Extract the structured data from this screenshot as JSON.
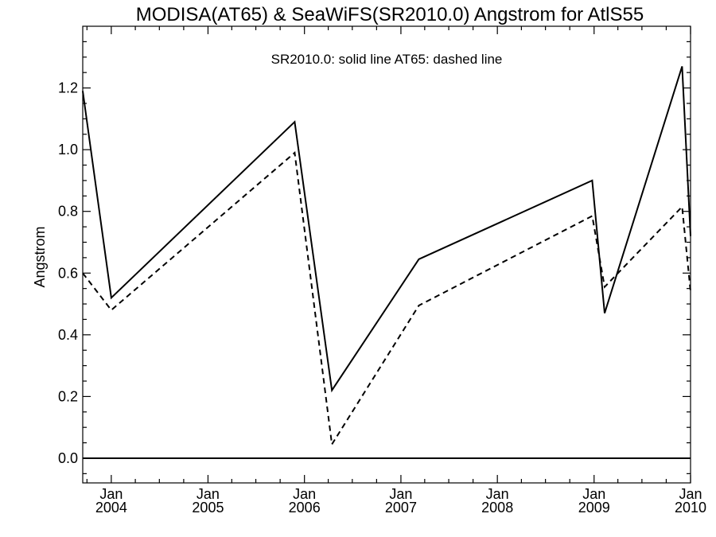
{
  "chart_data": {
    "type": "line",
    "title": "MODISA(AT65) & SeaWiFS(SR2010.0)  Angstrom for AtlS55",
    "annotation": "SR2010.0: solid line   AT65: dashed line",
    "ylabel": "Angstrom",
    "xlabel": "",
    "xlim": [
      "2003-09-15",
      "2010-01-01"
    ],
    "ylim": [
      -0.08,
      1.4
    ],
    "yticks": [
      0.0,
      0.2,
      0.4,
      0.6,
      0.8,
      1.0,
      1.2
    ],
    "ytick_labels": [
      "0.0",
      "0.2",
      "0.4",
      "0.6",
      "0.8",
      "1.0",
      "1.2"
    ],
    "xticks": [
      {
        "date": "2004-01-01",
        "month": "Jan",
        "year": "2004"
      },
      {
        "date": "2005-01-01",
        "month": "Jan",
        "year": "2005"
      },
      {
        "date": "2006-01-01",
        "month": "Jan",
        "year": "2006"
      },
      {
        "date": "2007-01-01",
        "month": "Jan",
        "year": "2007"
      },
      {
        "date": "2008-01-01",
        "month": "Jan",
        "year": "2008"
      },
      {
        "date": "2009-01-01",
        "month": "Jan",
        "year": "2009"
      },
      {
        "date": "2010-01-01",
        "month": "Jan",
        "year": "2010"
      }
    ],
    "reference_line": 0.0,
    "series": [
      {
        "name": "SR2010.0",
        "style": "solid",
        "x": [
          "2003-09-15",
          "2004-01-01",
          "2005-11-25",
          "2006-04-15",
          "2007-03-10",
          "2008-12-25",
          "2009-02-10",
          "2009-11-30",
          "2010-01-01"
        ],
        "y": [
          1.19,
          0.52,
          1.09,
          0.22,
          0.645,
          0.9,
          0.47,
          1.27,
          0.72
        ]
      },
      {
        "name": "AT65",
        "style": "dashed",
        "x": [
          "2003-09-15",
          "2004-01-01",
          "2005-11-25",
          "2006-04-15",
          "2007-03-10",
          "2008-12-25",
          "2009-02-10",
          "2009-11-30",
          "2010-01-01"
        ],
        "y": [
          0.6,
          0.48,
          0.99,
          0.045,
          0.495,
          0.785,
          0.555,
          0.815,
          0.54
        ]
      }
    ]
  }
}
